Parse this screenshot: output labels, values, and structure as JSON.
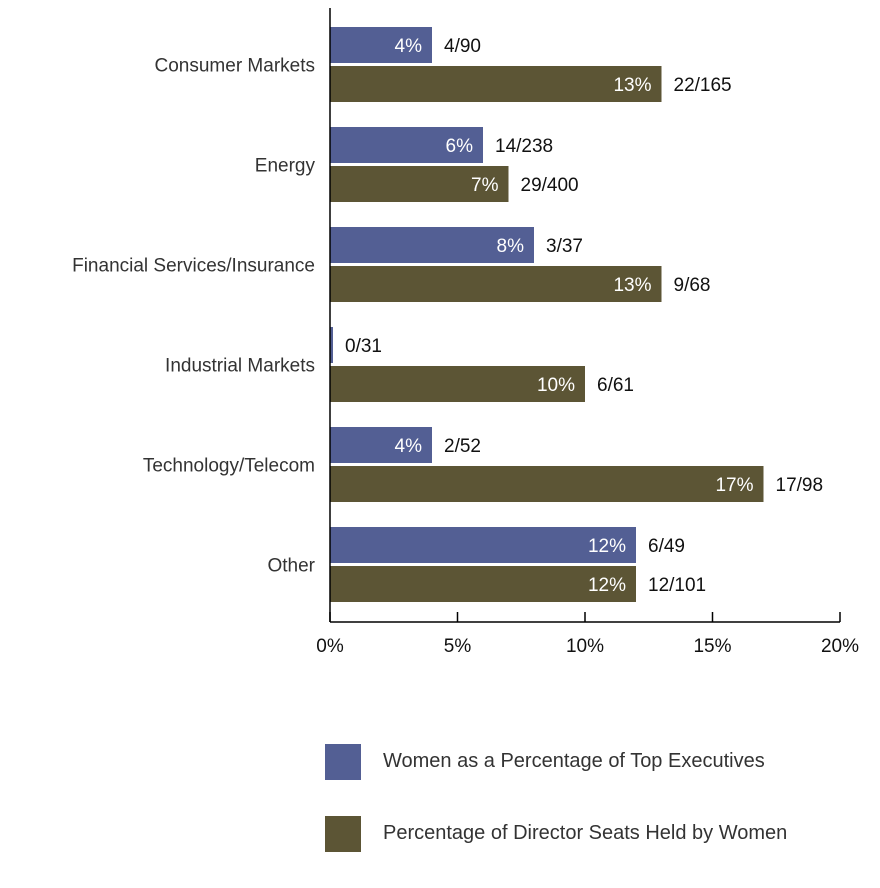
{
  "chart_data": {
    "type": "bar",
    "orientation": "horizontal",
    "categories": [
      "Consumer Markets",
      "Energy",
      "Financial Services/Insurance",
      "Industrial Markets",
      "Technology/Telecom",
      "Other"
    ],
    "series": [
      {
        "name": "Women as a Percentage of Top Executives",
        "color": "#535f94",
        "values": [
          4,
          6,
          8,
          0,
          4,
          12
        ],
        "bar_labels": [
          "4%",
          "6%",
          "8%",
          "",
          "4%",
          "12%"
        ],
        "count_labels": [
          "4/90",
          "14/238",
          "3/37",
          "0/31",
          "2/52",
          "6/49"
        ]
      },
      {
        "name": "Percentage of Director Seats Held by Women",
        "color": "#5c5535",
        "values": [
          13,
          7,
          13,
          10,
          17,
          12
        ],
        "bar_labels": [
          "13%",
          "7%",
          "13%",
          "10%",
          "17%",
          "12%"
        ],
        "count_labels": [
          "22/165",
          "29/400",
          "9/68",
          "6/61",
          "17/98",
          "12/101"
        ]
      }
    ],
    "x_ticks": [
      "0%",
      "5%",
      "10%",
      "15%",
      "20%"
    ],
    "xlim": [
      0,
      20
    ],
    "legend_position": "bottom",
    "grid": false
  }
}
